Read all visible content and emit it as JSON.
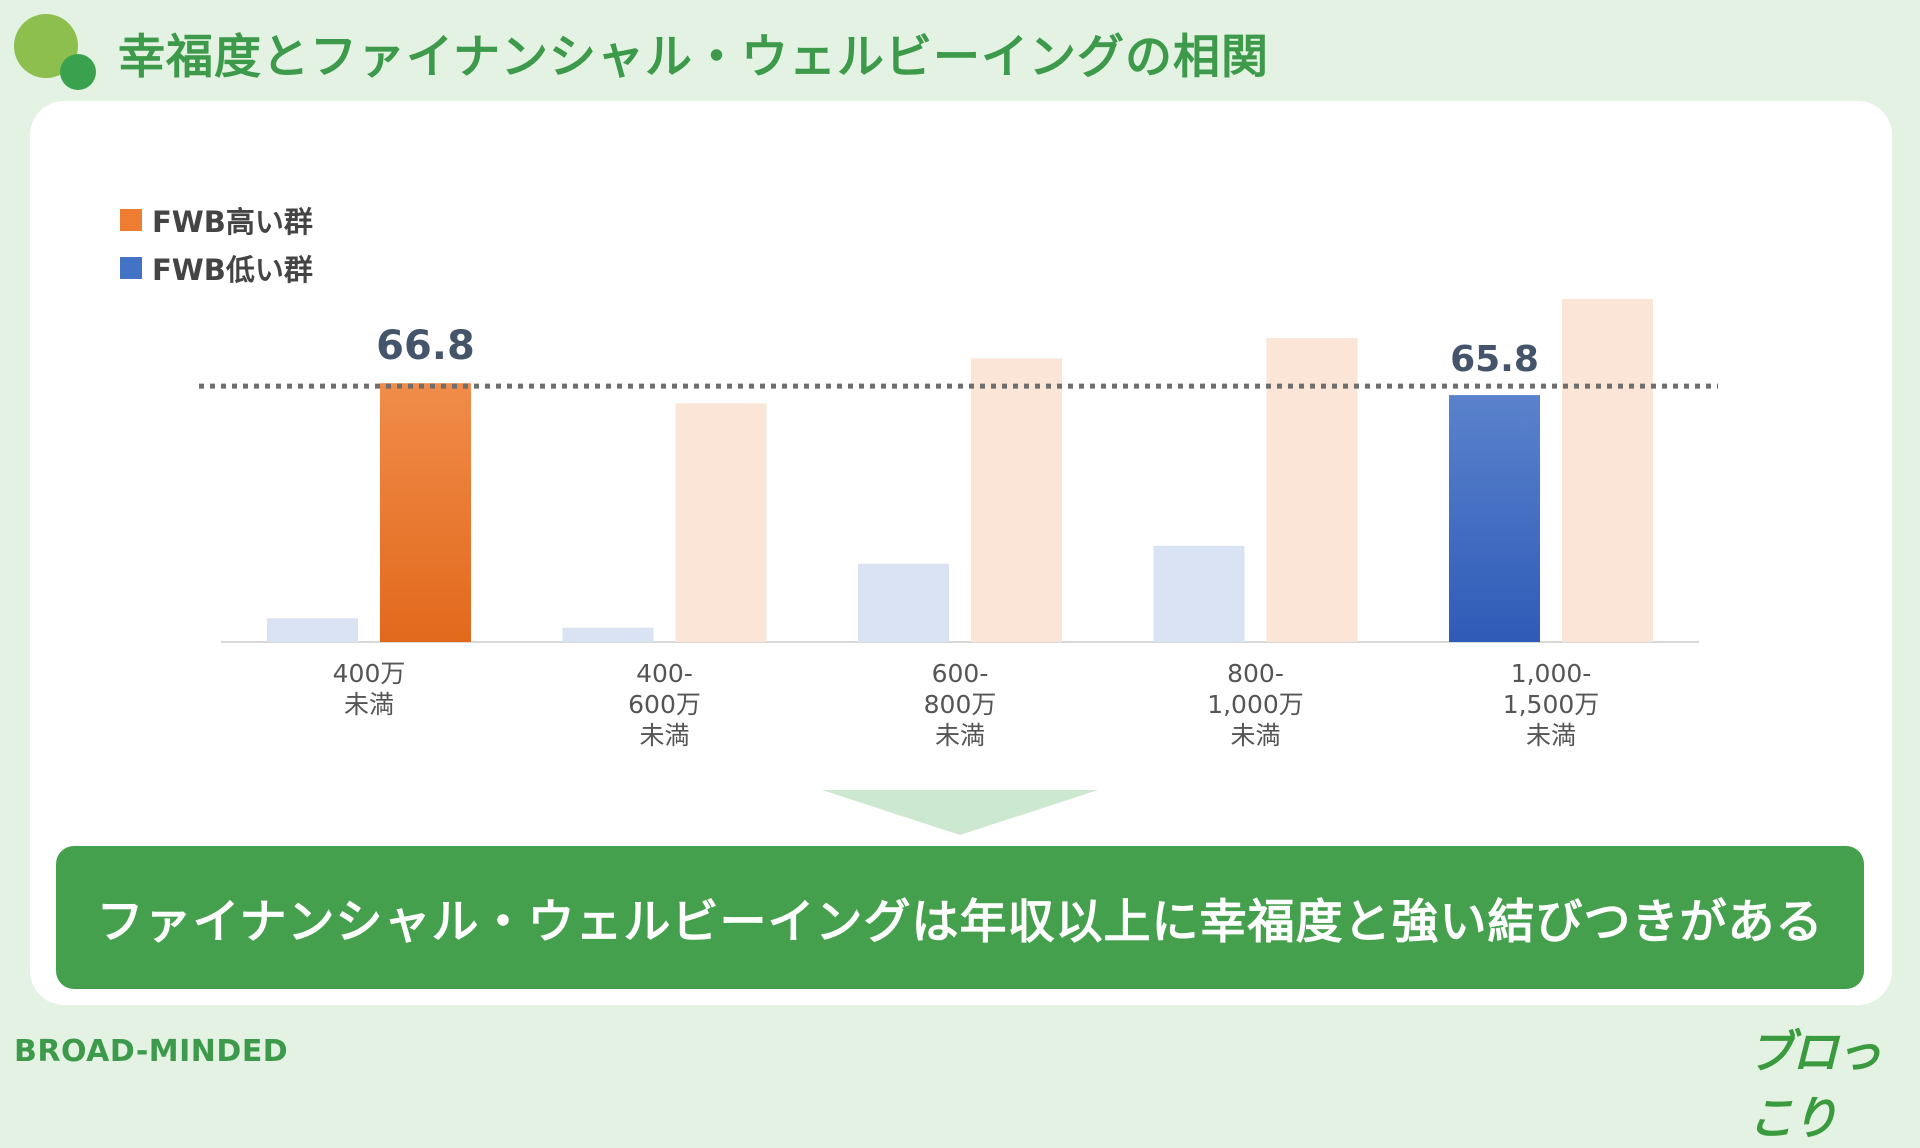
{
  "header": {
    "title": "幸福度とファイナンシャル・ウェルビーイングの相関"
  },
  "legend": {
    "items": [
      {
        "label": "FWB高い群",
        "color": "#ee7d33"
      },
      {
        "label": "FWB低い群",
        "color": "#4472c4"
      }
    ]
  },
  "chart_data": {
    "type": "bar",
    "categories": [
      [
        "400万",
        "未満"
      ],
      [
        "400-",
        "600万",
        "未満"
      ],
      [
        "600-",
        "800万",
        "未満"
      ],
      [
        "800-",
        "1,000万",
        "未満"
      ],
      [
        "1,000-",
        "1,500万",
        "未満"
      ]
    ],
    "series": [
      {
        "name": "FWB低い群",
        "values": [
          47.0,
          46.2,
          51.6,
          53.1,
          65.8
        ]
      },
      {
        "name": "FWB高い群",
        "values": [
          66.8,
          65.1,
          68.9,
          70.6,
          73.9
        ]
      }
    ],
    "reference_line": 65.8,
    "data_labels": [
      {
        "series": 1,
        "category": 0,
        "text": "66.8"
      },
      {
        "series": 0,
        "category": 4,
        "text": "65.8"
      }
    ],
    "highlighted": [
      {
        "series": 1,
        "category": 0
      },
      {
        "series": 0,
        "category": 4
      }
    ],
    "ylim": [
      45,
      76
    ],
    "colors": {
      "high": "#ee7d33",
      "high_faded": "#fbe5d6",
      "low": "#4472c4",
      "low_faded": "#dae3f3",
      "axis": "#d9d9d9",
      "reference": "#6e6e6e",
      "label": "#44546a"
    }
  },
  "callout": {
    "text": "ファイナンシャル・ウェルビーイングは年収以上に幸福度と強い結びつきがある"
  },
  "footer": {
    "left": "BROAD-MINDED",
    "right": "ブロっこり"
  }
}
